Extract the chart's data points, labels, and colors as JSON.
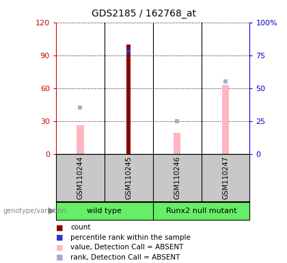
{
  "title": "GDS2185 / 162768_at",
  "samples": [
    "GSM110244",
    "GSM110245",
    "GSM110246",
    "GSM110247"
  ],
  "group_labels": [
    "wild type",
    "Runx2 null mutant"
  ],
  "count_values": [
    null,
    100,
    null,
    null
  ],
  "percentile_values": [
    null,
    78,
    null,
    null
  ],
  "value_absent": [
    26,
    null,
    19,
    63
  ],
  "rank_absent": [
    35,
    null,
    25,
    55
  ],
  "ylim_left": [
    0,
    120
  ],
  "ylim_right": [
    0,
    100
  ],
  "yticks_left": [
    0,
    30,
    60,
    90,
    120
  ],
  "yticks_right": [
    0,
    25,
    50,
    75,
    100
  ],
  "yticklabels_left": [
    "0",
    "30",
    "60",
    "90",
    "120"
  ],
  "yticklabels_right": [
    "0",
    "25",
    "50",
    "75",
    "100%"
  ],
  "bar_color_count": "#8B0000",
  "bar_color_percentile": "#3333CC",
  "bar_color_value_absent": "#FFB6C1",
  "bar_color_rank_absent": "#AAAACC",
  "bg_color_sample_area": "#C8C8C8",
  "bg_color_group": "#66EE66",
  "left_axis_color": "#CC0000",
  "right_axis_color": "#0000CC",
  "legend_items": [
    "count",
    "percentile rank within the sample",
    "value, Detection Call = ABSENT",
    "rank, Detection Call = ABSENT"
  ],
  "legend_colors": [
    "#8B0000",
    "#3333CC",
    "#FFB6C1",
    "#AAAACC"
  ]
}
